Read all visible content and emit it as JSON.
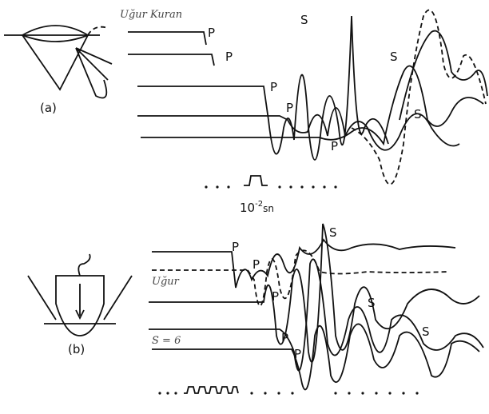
{
  "panel_a": {
    "label": "(a)",
    "signature": "Uğur Kuran",
    "p_labels": [
      "P",
      "P",
      "P",
      "P",
      "P"
    ],
    "s_labels": [
      "S",
      "S",
      "S"
    ],
    "timescale": {
      "base": "10",
      "exponent": "-2",
      "unit": "sn"
    }
  },
  "panel_b": {
    "label": "(b)",
    "signature": "Uğur",
    "note": "S = 6",
    "p_labels": [
      "P",
      "P",
      "P",
      "P",
      "P"
    ],
    "s_labels": [
      "S",
      "S",
      "S"
    ]
  }
}
